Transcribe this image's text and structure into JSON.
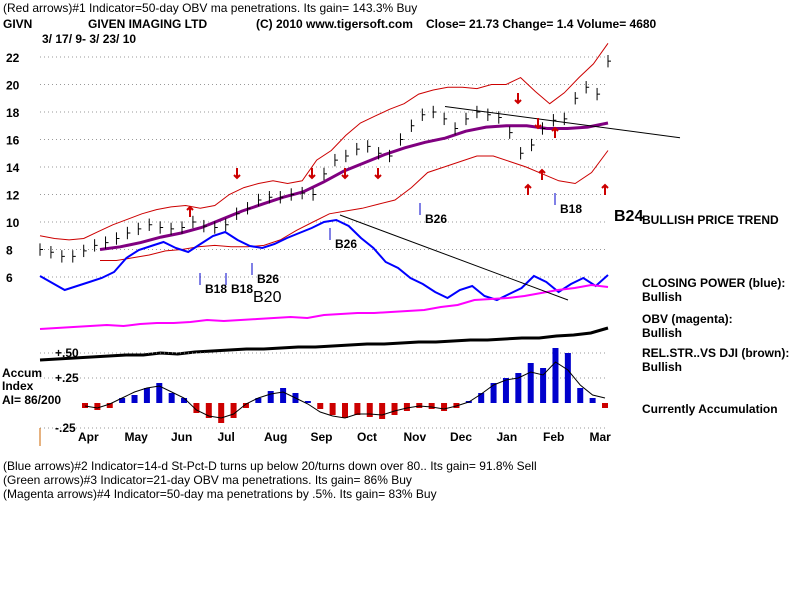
{
  "header": {
    "line1": "(Red arrows)#1 Indicator=50-day OBV ma penetrations. Its gain= 143.3% Buy",
    "symbol": "GIVN",
    "company": "GIVEN IMAGING LTD",
    "copyright": "(C) 2010 www.tigersoft.com",
    "quote": "Close=  21.73  Change= 1.4 Volume= 4680",
    "date_range": "3/ 17/ 9-  3/ 23/ 10"
  },
  "footer": {
    "line1": "(Blue arrows)#2 Indicator=14-d St-Pct-D turns up below 20/turns down over 80.. Its gain= 91.8% Sell",
    "line2": "(Green arrows)#3 Indicator=21-day OBV ma penetrations. Its gain= 86% Buy",
    "line3": "(Magenta arrows)#4 Indicator=50-day ma penetrations by .5%. Its gain= 83% Buy"
  },
  "right_panel": {
    "trend": "BULLISH PRICE TREND",
    "cp_label": "CLOSING POWER (blue):",
    "cp_value": "Bullish",
    "obv_label": "OBV (magenta):",
    "obv_value": "Bullish",
    "rs_label": "REL.STR..VS DJI (brown):",
    "rs_value": "Bullish",
    "accum_status": "Currently Accumulation"
  },
  "accum_panel": {
    "title_line1": "Accum",
    "title_line2": "Index",
    "ai": "AI= 86/200"
  },
  "signals": {
    "b24": "B24",
    "b26_top": "B26",
    "b26_mid": "B26",
    "b18_top": "B18",
    "b18_low": "B18",
    "b18_low2": "B18",
    "b20": "B20",
    "b26_low": "B26"
  },
  "colors": {
    "price_bars": "#000000",
    "bands": "#cc0000",
    "ma50": "#800080",
    "closing_power": "#0000ff",
    "obv": "#ff00ff",
    "rel_strength": "#000000",
    "accum_pos": "#0000cc",
    "accum_neg": "#cc0000"
  },
  "chart_data": {
    "type": "line",
    "x_labels": [
      "Apr",
      "May",
      "Jun",
      "Jul",
      "Aug",
      "Sep",
      "Oct",
      "Nov",
      "Dec",
      "Jan",
      "Feb",
      "Mar"
    ],
    "price_axis": {
      "ticks": [
        22,
        20,
        18,
        16,
        14,
        12,
        10,
        8,
        6
      ],
      "range": [
        5,
        23
      ]
    },
    "price_close": [
      8,
      7.8,
      7.5,
      7.5,
      7.9,
      8.3,
      8.5,
      8.8,
      9.2,
      9.5,
      9.8,
      9.6,
      9.5,
      9.6,
      10,
      9.7,
      9.6,
      9.8,
      10.6,
      11,
      11.6,
      11.8,
      11.8,
      12,
      12.1,
      12,
      13.5,
      14.5,
      14.8,
      15.3,
      15.5,
      15,
      14.8,
      16,
      17,
      17.8,
      18,
      17.5,
      16.8,
      17.5,
      18,
      17.8,
      17.6,
      16.5,
      15,
      15.6,
      16.8,
      17.4,
      17.5,
      19,
      19.8,
      19.3,
      21.7
    ],
    "upper_band": [
      9,
      8.8,
      8.7,
      8.8,
      9.3,
      9.8,
      10.2,
      10.6,
      10.9,
      11.1,
      11.2,
      11,
      11.2,
      12,
      12.5,
      12.8,
      13,
      12.8,
      13,
      14.5,
      15.2,
      16.3,
      17.2,
      17.7,
      18.2,
      18.6,
      19.3,
      19.6,
      19.8,
      19.8,
      19.7,
      20,
      20,
      20.5,
      19.5,
      18.6,
      19.4,
      20.5,
      21.5,
      23
    ],
    "lower_band": [
      7.2,
      7.2,
      7.4,
      7.6,
      7.9,
      8,
      8.2,
      8.3,
      8.2,
      8.2,
      8.3,
      8.7,
      9.4,
      10,
      10.6,
      10.8,
      11,
      11.3,
      11.6,
      12.5,
      13.6,
      14,
      14.4,
      14.8,
      14.8,
      14.4,
      14,
      13.5,
      13,
      12.8,
      13.6,
      15.2
    ],
    "ma50": [
      8,
      8.2,
      8.5,
      8.9,
      9.2,
      9.6,
      10.2,
      10.8,
      11.3,
      11.8,
      12.2,
      12.9,
      13.7,
      14.3,
      14.9,
      15.4,
      15.8,
      16.1,
      16.6,
      16.9,
      17,
      17,
      16.8,
      16.8,
      16.9,
      17.2
    ],
    "trendline": {
      "start": 18.4,
      "end": 17
    },
    "accum_axis": {
      "ticks": [
        0.5,
        0.25,
        -0.25
      ],
      "labels": [
        "+.50",
        "+.25",
        "-.25"
      ]
    },
    "accum_index": [
      -0.05,
      -0.07,
      -0.05,
      0.05,
      0.08,
      0.15,
      0.2,
      0.1,
      0.05,
      -0.1,
      -0.15,
      -0.2,
      -0.15,
      -0.05,
      0.05,
      0.12,
      0.15,
      0.1,
      0.02,
      -0.06,
      -0.12,
      -0.15,
      -0.12,
      -0.14,
      -0.16,
      -0.12,
      -0.08,
      -0.05,
      -0.06,
      -0.08,
      -0.05,
      0.02,
      0.1,
      0.2,
      0.25,
      0.3,
      0.4,
      0.35,
      0.55,
      0.5,
      0.15,
      0.05,
      -0.05
    ],
    "ai_value": 86,
    "ai_max": 200
  }
}
